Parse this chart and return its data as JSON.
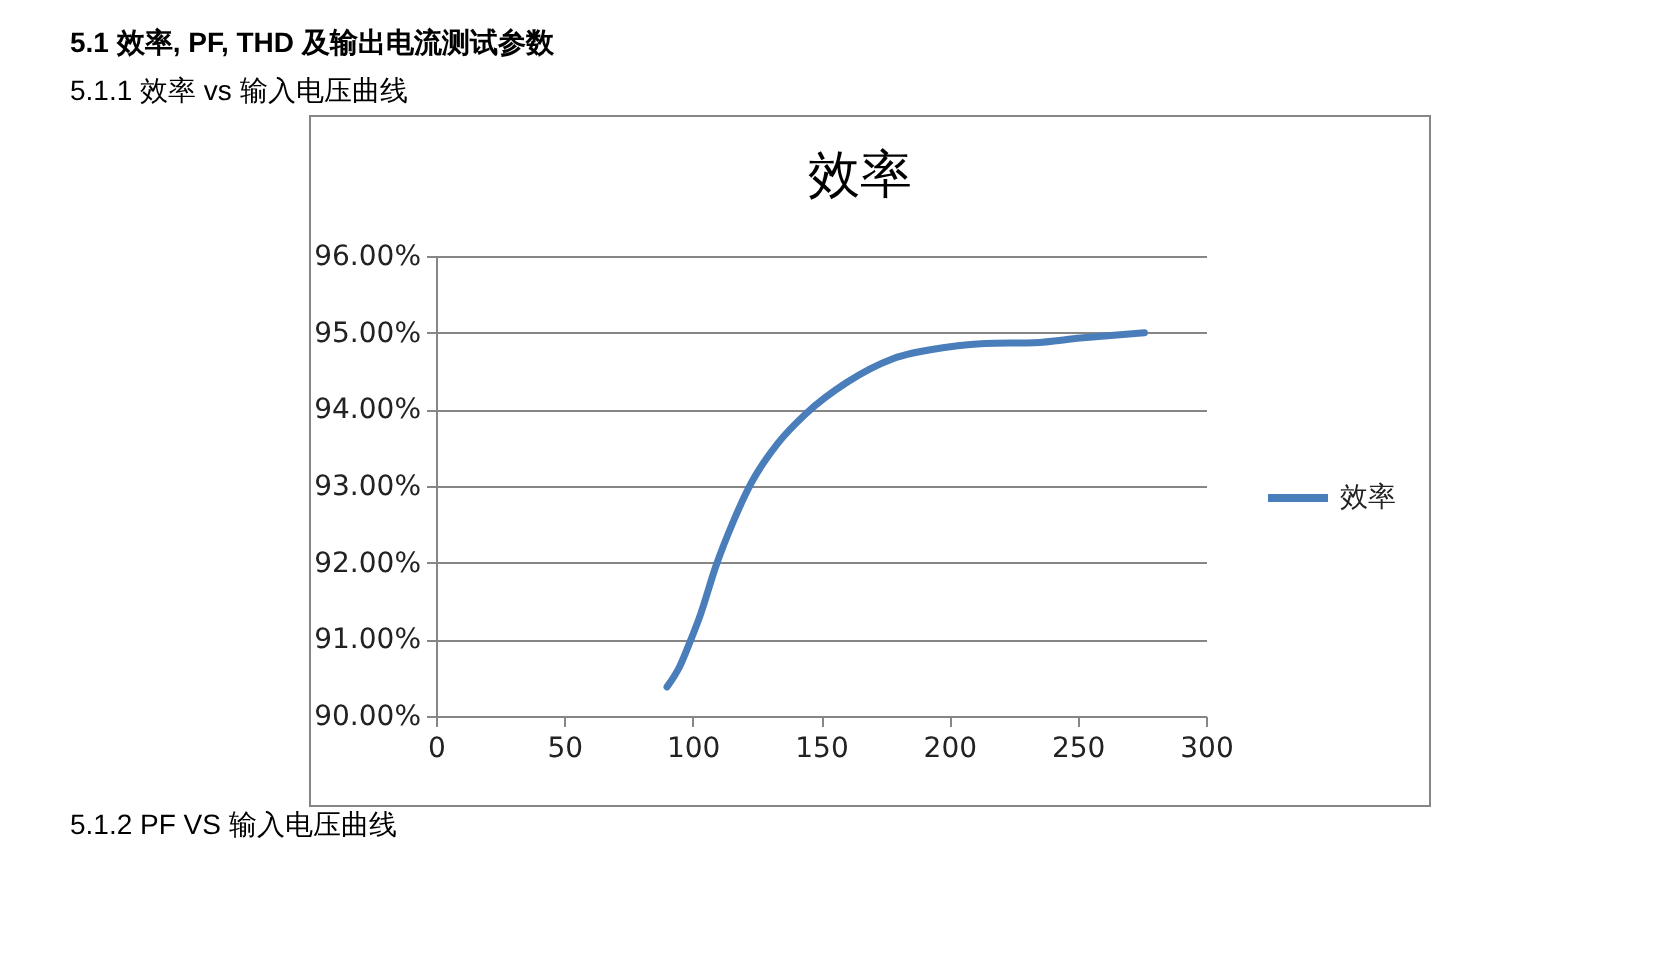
{
  "chart_data": {
    "type": "line",
    "title": "效率",
    "annotations": [
      "5.1 效率, PF, THD 及输出电流测试参数",
      "5.1.1 效率 vs 输入电压曲线",
      "5.1.2 PF VS 输入电压曲线"
    ],
    "x": [
      90,
      95,
      99,
      103,
      109,
      116,
      123,
      133,
      144,
      160,
      178,
      199,
      214,
      233,
      251,
      276
    ],
    "series": [
      {
        "name": "效率",
        "color": "#4a7ebb",
        "values": [
          90.38,
          90.65,
          90.97,
          91.32,
          91.95,
          92.55,
          93.05,
          93.55,
          93.94,
          94.35,
          94.66,
          94.81,
          94.86,
          94.87,
          94.93,
          95.0
        ]
      }
    ],
    "xlim": [
      0,
      300
    ],
    "xticks": [
      0,
      50,
      100,
      150,
      200,
      250,
      300
    ],
    "ylim": [
      90,
      96
    ],
    "yticks": [
      {
        "value": 90,
        "label": "90.00%"
      },
      {
        "value": 91,
        "label": "91.00%"
      },
      {
        "value": 92,
        "label": "92.00%"
      },
      {
        "value": 93,
        "label": "93.00%"
      },
      {
        "value": 94,
        "label": "94.00%"
      },
      {
        "value": 95,
        "label": "95.00%"
      },
      {
        "value": 96,
        "label": "96.00%"
      }
    ],
    "grid": "y",
    "legend": "right",
    "line_style": "solid"
  }
}
